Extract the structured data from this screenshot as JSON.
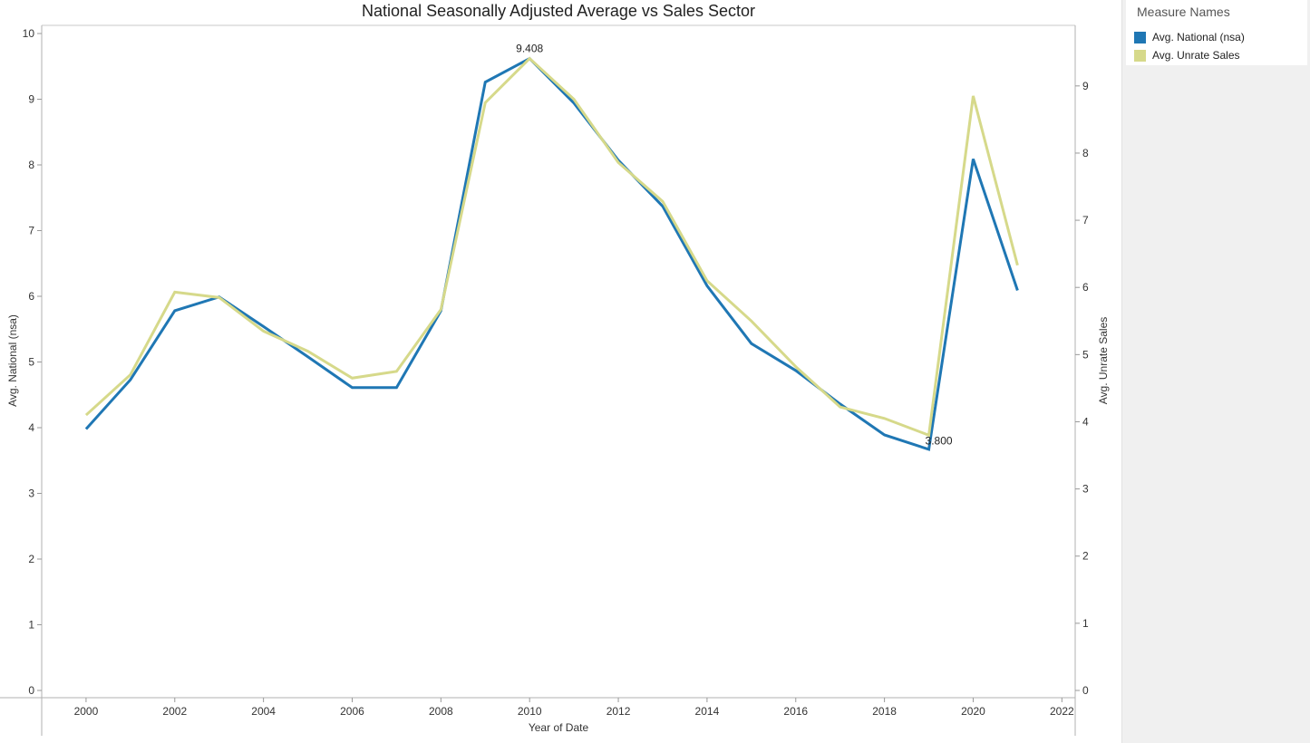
{
  "chart_data": {
    "type": "line",
    "title": "National Seasonally Adjusted Average vs Sales Sector",
    "xlabel": "Year of Date",
    "ylabel_left": "Avg. National (nsa)",
    "ylabel_right": "Avg. Unrate Sales",
    "x_ticks": [
      2000,
      2002,
      2004,
      2006,
      2008,
      2010,
      2012,
      2014,
      2016,
      2018,
      2020,
      2022
    ],
    "xlim": [
      1999,
      2022.3
    ],
    "ylim_left": [
      0,
      10
    ],
    "yticks_left": [
      0,
      1,
      2,
      3,
      4,
      5,
      6,
      7,
      8,
      9,
      10
    ],
    "ylim_right": [
      0,
      9.78
    ],
    "yticks_right": [
      0,
      1,
      2,
      3,
      4,
      5,
      6,
      7,
      8,
      9
    ],
    "grid": false,
    "legend_position": "right",
    "legend_title": "Measure Names",
    "x": [
      2000,
      2001,
      2002,
      2003,
      2004,
      2005,
      2006,
      2007,
      2008,
      2009,
      2010,
      2011,
      2012,
      2013,
      2014,
      2015,
      2016,
      2017,
      2018,
      2019,
      2020,
      2021
    ],
    "series": [
      {
        "name": "Avg. National (nsa)",
        "axis": "left",
        "color": "#1f77b4",
        "values": [
          3.98,
          4.73,
          5.78,
          5.99,
          5.54,
          5.08,
          4.61,
          4.61,
          5.78,
          9.26,
          9.62,
          8.94,
          8.07,
          7.37,
          6.16,
          5.28,
          4.87,
          4.36,
          3.89,
          3.67,
          8.09,
          6.09
        ]
      },
      {
        "name": "Avg. Unrate Sales",
        "axis": "right",
        "color": "#d6d98a",
        "values": [
          4.1,
          4.7,
          5.93,
          5.85,
          5.35,
          5.05,
          4.65,
          4.75,
          5.67,
          8.75,
          9.408,
          8.8,
          7.86,
          7.28,
          6.1,
          5.5,
          4.82,
          4.22,
          4.05,
          3.8,
          8.85,
          6.33
        ]
      }
    ],
    "annotations": [
      {
        "series": 1,
        "x": 2010,
        "text": "9.408"
      },
      {
        "series": 1,
        "x": 2019,
        "text": "3.800"
      }
    ]
  }
}
